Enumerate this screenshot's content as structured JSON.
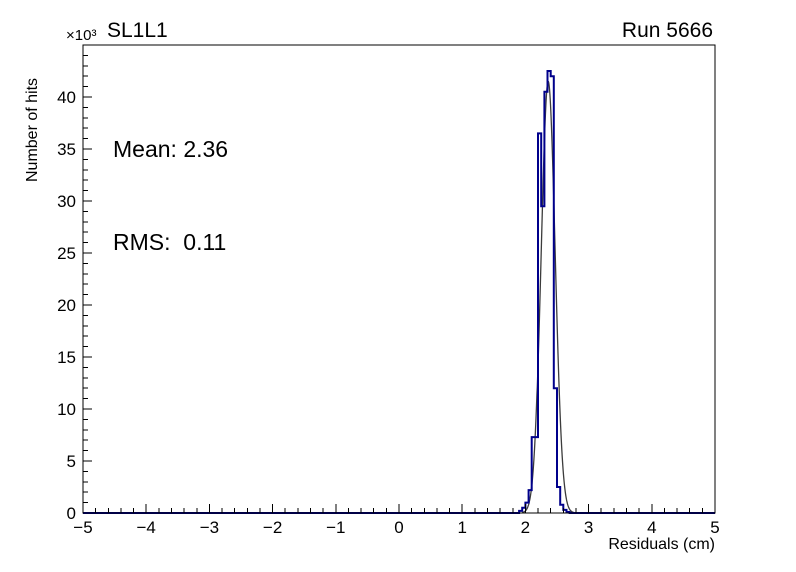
{
  "chart_data": {
    "type": "histogram",
    "title": "SL1L1",
    "run_label": "Run 5666",
    "y_scale_label": "×10³",
    "xlabel": "Residuals (cm)",
    "ylabel": "Number of hits",
    "xlim": [
      -5,
      5
    ],
    "ylim": [
      0,
      45000
    ],
    "x_ticks": [
      -5,
      -4,
      -3,
      -2,
      -1,
      0,
      1,
      2,
      3,
      4,
      5
    ],
    "x_tick_labels": [
      "−5",
      "−4",
      "−3",
      "−2",
      "−1",
      "0",
      "1",
      "2",
      "3",
      "4",
      "5"
    ],
    "x_minor_step": 0.2,
    "y_ticks": [
      0,
      5000,
      10000,
      15000,
      20000,
      25000,
      30000,
      35000,
      40000
    ],
    "y_tick_labels": [
      "0",
      "5",
      "10",
      "15",
      "20",
      "25",
      "30",
      "35",
      "40"
    ],
    "y_minor_step": 1000,
    "grid": false,
    "legend": null,
    "stats": {
      "mean": 2.36,
      "rms": 0.11,
      "mean_label": "Mean: 2.36",
      "rms_label": "RMS:  0.11"
    },
    "histogram": {
      "color": "#00008b",
      "line_width": 2,
      "bin_edges": [
        1.9,
        1.95,
        2.0,
        2.05,
        2.1,
        2.15,
        2.2,
        2.25,
        2.3,
        2.35,
        2.4,
        2.45,
        2.5,
        2.55,
        2.6,
        2.65,
        2.7
      ],
      "counts": [
        200,
        500,
        1000,
        2200,
        7300,
        7300,
        36500,
        29500,
        40500,
        42500,
        42000,
        12000,
        2500,
        800,
        300,
        100
      ]
    },
    "fit": {
      "type": "gaussian",
      "color": "#3c3c3c",
      "line_width": 1.3,
      "mean": 2.36,
      "sigma": 0.11,
      "amplitude": 41500,
      "range": [
        1.95,
        2.9
      ]
    }
  }
}
